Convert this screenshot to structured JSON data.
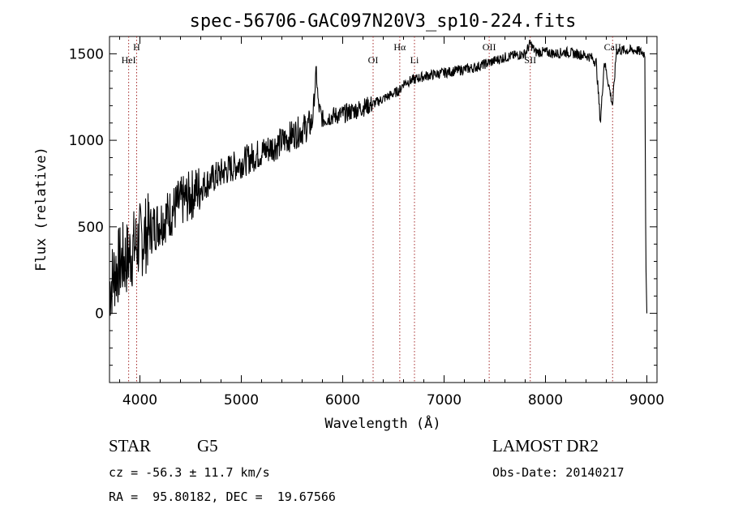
{
  "chart_data": {
    "type": "line",
    "title": "spec-56706-GAC097N20V3_sp10-224.fits",
    "xlabel": "Wavelength (Å)",
    "ylabel": "Flux (relative)",
    "xlim": [
      3700,
      9100
    ],
    "ylim": [
      -400,
      1600
    ],
    "xticks": [
      4000,
      5000,
      6000,
      7000,
      8000,
      9000
    ],
    "yticks": [
      0,
      500,
      1000,
      1500
    ],
    "grid": false,
    "series": [
      {
        "x": [
          3700,
          3760,
          3820,
          3880,
          3940,
          4000,
          4100,
          4200,
          4300,
          4400,
          4500,
          4600,
          4700,
          4800,
          4900,
          5000,
          5100,
          5200,
          5300,
          5400,
          5500,
          5600,
          5700,
          5740,
          5760,
          5800,
          5900,
          6000,
          6100,
          6200,
          6300,
          6400,
          6500,
          6563,
          6600,
          6700,
          6800,
          6900,
          7000,
          7100,
          7200,
          7300,
          7400,
          7500,
          7600,
          7700,
          7800,
          7850,
          7900,
          8000,
          8100,
          8200,
          8300,
          8400,
          8450,
          8500,
          8542,
          8580,
          8662,
          8700,
          8800,
          8900,
          8980,
          8990,
          9000
        ],
        "y": [
          150,
          250,
          300,
          320,
          380,
          420,
          480,
          530,
          580,
          640,
          680,
          730,
          770,
          810,
          840,
          870,
          900,
          930,
          960,
          990,
          1030,
          1060,
          1100,
          1400,
          1200,
          1120,
          1140,
          1150,
          1170,
          1190,
          1210,
          1240,
          1270,
          1290,
          1330,
          1350,
          1370,
          1380,
          1390,
          1400,
          1410,
          1420,
          1440,
          1460,
          1480,
          1490,
          1500,
          1560,
          1510,
          1510,
          1500,
          1510,
          1500,
          1490,
          1480,
          1450,
          1100,
          1460,
          1200,
          1520,
          1520,
          1520,
          1500,
          300,
          0
        ]
      }
    ],
    "line_marks": [
      {
        "x": 3889,
        "label": "HeI"
      },
      {
        "x": 3968,
        "label": "H"
      },
      {
        "x": 6300,
        "label": "OI"
      },
      {
        "x": 6563,
        "label": "Hα"
      },
      {
        "x": 6708,
        "label": "Li"
      },
      {
        "x": 7445,
        "label": "OII"
      },
      {
        "x": 7850,
        "label": "SII"
      },
      {
        "x": 8662,
        "label": "CaII"
      }
    ]
  },
  "info": {
    "object_class": "STAR",
    "subclass": "G5",
    "survey": "LAMOST DR2",
    "cz": "cz = -56.3 ± 11.7 km/s",
    "obs_date": "Obs-Date: 20140217",
    "coords": "RA =  95.80182, DEC =  19.67566"
  }
}
